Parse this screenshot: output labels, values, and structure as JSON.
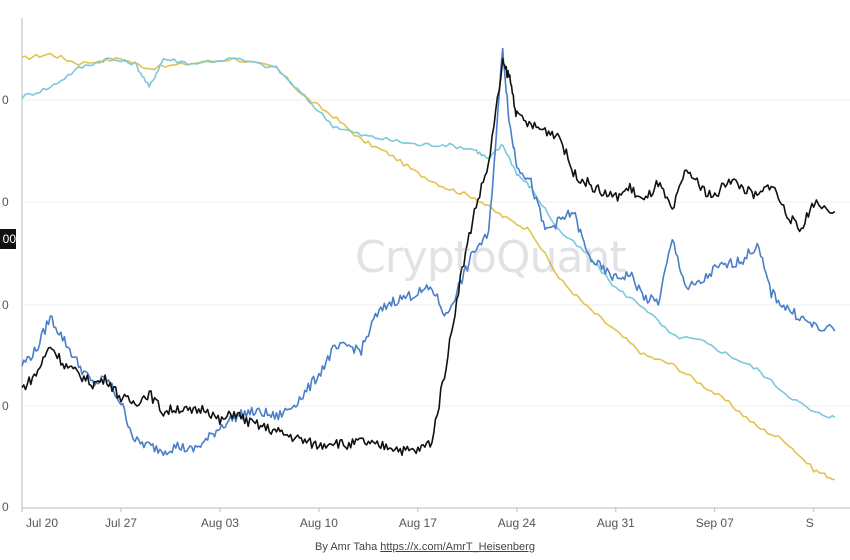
{
  "watermark": "CryptoQuant",
  "credit": {
    "prefix": "By Amr Taha ",
    "link": "https://x.com/AmrT_Heisenberg"
  },
  "badge": "00",
  "colors": {
    "black": "#111111",
    "blue": "#4a7fc8",
    "cyan": "#7cc8dd",
    "gold": "#e3c350",
    "grid": "#ececec",
    "axis": "#bbbbbb"
  },
  "chart_data": {
    "type": "line",
    "x_ticks": [
      "Jul 20",
      "Jul 27",
      "Aug 03",
      "Aug 10",
      "Aug 17",
      "Aug 24",
      "Aug 31",
      "Sep 07",
      "S"
    ],
    "y_ticks": [
      "0",
      "0",
      "0",
      "0",
      "0"
    ],
    "xlim": [
      0,
      58
    ],
    "ylim": [
      0,
      100
    ],
    "grid": true,
    "legend": "none",
    "series": [
      {
        "color": "#e3c350",
        "x": [
          0,
          2,
          4,
          7,
          9,
          12,
          15,
          18,
          20,
          22,
          24,
          26,
          28,
          30,
          32,
          34,
          36,
          38,
          40,
          42,
          44,
          46,
          48,
          50,
          52,
          54,
          56,
          57.5
        ],
        "y": [
          94,
          95,
          93,
          94,
          92,
          93,
          94,
          92,
          86,
          82,
          77,
          74,
          70,
          67,
          65,
          61,
          58,
          48,
          42,
          37,
          32,
          30,
          26,
          22,
          17,
          14,
          8,
          6
        ]
      },
      {
        "color": "#7cc8dd",
        "x": [
          0,
          2,
          4,
          6,
          8,
          9,
          10,
          12,
          15,
          18,
          20,
          22,
          24,
          26,
          28,
          30,
          32,
          33,
          34,
          35,
          36,
          38,
          40,
          42,
          44,
          46,
          48,
          50,
          52,
          54,
          56,
          57.5
        ],
        "y": [
          86,
          88,
          92,
          94,
          93,
          88,
          94,
          93,
          94,
          92,
          86,
          80,
          78,
          77,
          76,
          76,
          75,
          73,
          76,
          70,
          67,
          58,
          53,
          46,
          42,
          36,
          35,
          32,
          29,
          24,
          20,
          19
        ]
      },
      {
        "color": "#4a7fc8",
        "x": [
          0,
          1,
          2,
          3,
          4,
          5,
          6,
          7,
          8,
          9,
          10,
          11,
          12,
          13,
          14,
          15,
          16,
          17,
          18,
          19,
          20,
          21,
          22,
          23,
          24,
          25,
          26,
          27,
          28,
          29,
          30,
          31,
          32,
          33,
          34,
          34.5,
          35,
          36,
          37,
          38,
          39,
          40,
          41,
          42,
          43,
          44,
          45,
          46,
          47,
          48,
          49,
          50,
          51,
          52,
          53,
          54,
          55,
          56,
          57.5
        ],
        "y": [
          30,
          33,
          40,
          35,
          30,
          26,
          27,
          22,
          14,
          13,
          12,
          13,
          12,
          14,
          17,
          19,
          20,
          20,
          19,
          21,
          24,
          28,
          33,
          34,
          33,
          40,
          43,
          44,
          45,
          46,
          40,
          47,
          54,
          57,
          96,
          80,
          72,
          68,
          58,
          60,
          62,
          53,
          50,
          48,
          49,
          44,
          43,
          56,
          46,
          47,
          50,
          51,
          52,
          55,
          45,
          42,
          40,
          38,
          37
        ]
      },
      {
        "color": "#111111",
        "x": [
          0,
          1,
          2,
          3,
          4,
          5,
          6,
          7,
          8,
          9,
          10,
          11,
          12,
          13,
          14,
          15,
          16,
          17,
          18,
          19,
          20,
          21,
          22,
          23,
          24,
          25,
          26,
          27,
          28,
          29,
          30,
          31,
          32,
          33,
          34,
          34.5,
          35,
          36,
          37,
          38,
          39,
          40,
          41,
          42,
          43,
          44,
          45,
          46,
          47,
          48,
          49,
          50,
          51,
          52,
          53,
          54,
          55,
          56,
          57.5
        ],
        "y": [
          25,
          28,
          34,
          30,
          28,
          26,
          27,
          23,
          22,
          24,
          20,
          21,
          20,
          21,
          18,
          20,
          18,
          17,
          16,
          15,
          14,
          13,
          14,
          13,
          14,
          13,
          13,
          12,
          12,
          14,
          30,
          48,
          62,
          72,
          93,
          90,
          82,
          80,
          79,
          78,
          70,
          68,
          66,
          65,
          67,
          64,
          68,
          62,
          71,
          67,
          65,
          69,
          67,
          65,
          68,
          62,
          58,
          64,
          62
        ]
      }
    ]
  }
}
